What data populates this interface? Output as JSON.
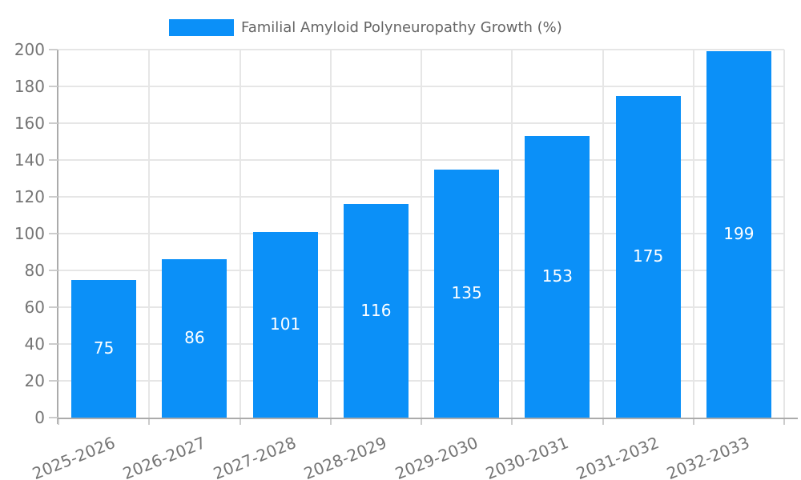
{
  "chart_data": {
    "type": "bar",
    "title": "Familial Amyloid Polyneuropathy Growth (%)",
    "categories": [
      "2025-2026",
      "2026-2027",
      "2027-2028",
      "2028-2029",
      "2029-2030",
      "2030-2031",
      "2031-2032",
      "2032-2033"
    ],
    "values": [
      75,
      86,
      101,
      116,
      135,
      153,
      175,
      199
    ],
    "xlabel": "",
    "ylabel": "",
    "ylim": [
      0,
      200
    ],
    "ytick_step": 20,
    "yticks": [
      0,
      20,
      40,
      60,
      80,
      100,
      120,
      140,
      160,
      180,
      200
    ],
    "grid": true,
    "legend_position": "top-center",
    "x_label_rotation_deg": -22,
    "colors": {
      "bar": "#0b90f8",
      "value_label": "#ffffff",
      "axis_text": "#757575",
      "title_text": "#666666",
      "grid_line": "#e6e6e6",
      "axis_line": "#ababab",
      "tick": "#cccccc",
      "background": "#ffffff"
    }
  }
}
